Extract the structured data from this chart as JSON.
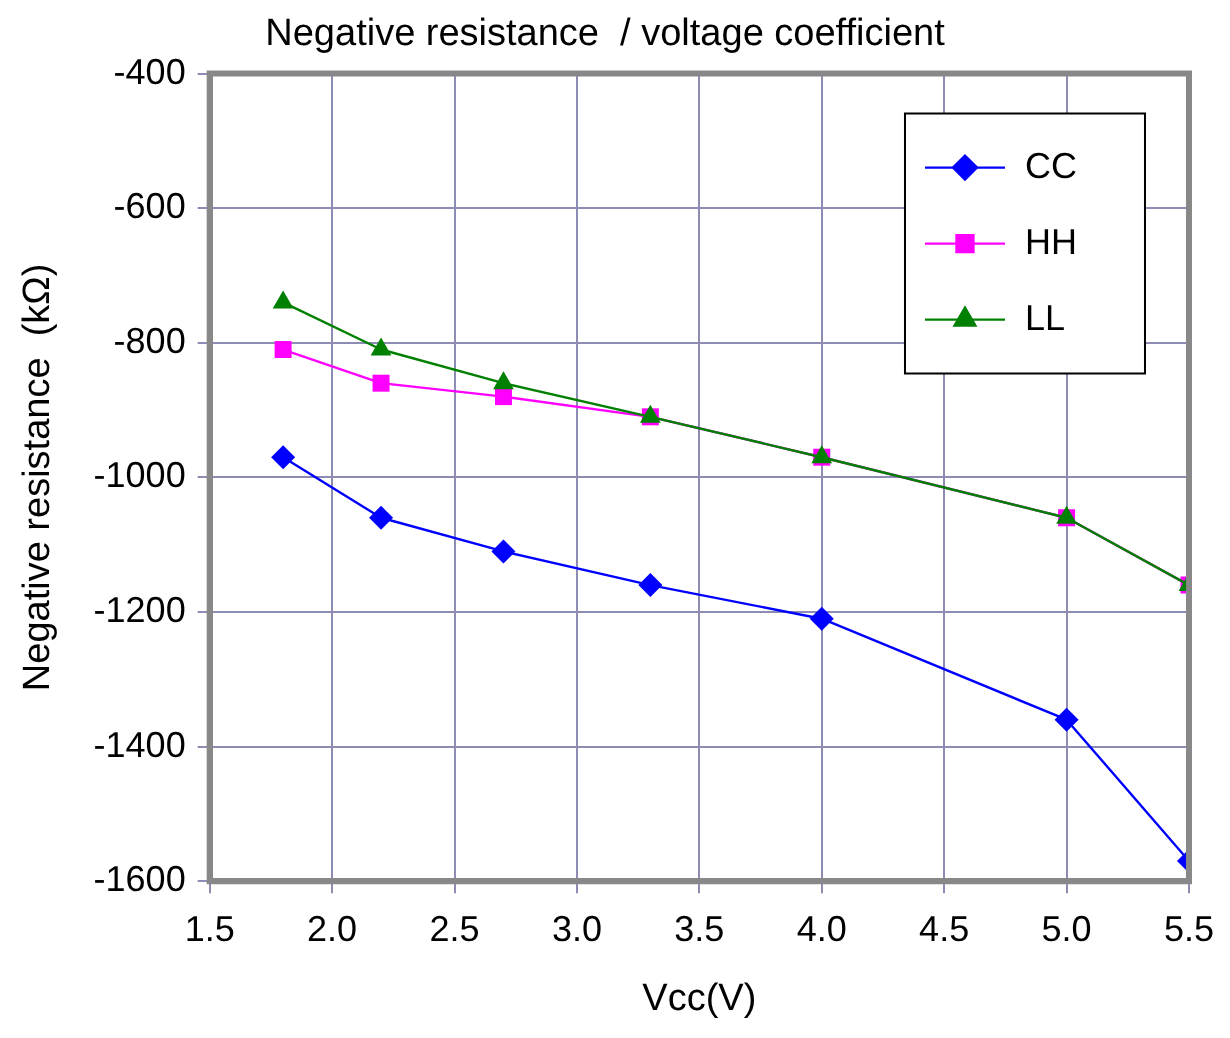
{
  "chart_data": {
    "type": "line",
    "title": "Negative resistance  / voltage coefficient",
    "xlabel": "Vcc(V)",
    "ylabel": "Negative resistance  (kΩ)",
    "x": [
      1.8,
      2.2,
      2.7,
      3.3,
      4.0,
      5.0,
      5.5
    ],
    "series": [
      {
        "name": "CC",
        "color": "#0000ff",
        "marker": "diamond",
        "values": [
          -970,
          -1060,
          -1110,
          -1160,
          -1210,
          -1360,
          -1570
        ]
      },
      {
        "name": "HH",
        "color": "#ff00ff",
        "marker": "square",
        "values": [
          -810,
          -860,
          -880,
          -910,
          -970,
          -1060,
          -1160
        ]
      },
      {
        "name": "LL",
        "color": "#008000",
        "marker": "triangle",
        "values": [
          -740,
          -810,
          -860,
          -910,
          -970,
          -1060,
          -1160
        ]
      }
    ],
    "xlim": [
      1.5,
      5.5
    ],
    "xticks": [
      1.5,
      {
        "value": 2,
        "label": "2.0"
      },
      2.5,
      {
        "value": 3,
        "label": "3.0"
      },
      3.5,
      {
        "value": 4,
        "label": "4.0"
      },
      4.5,
      {
        "value": 5,
        "label": "5.0"
      },
      5.5
    ],
    "ylim": [
      -1600,
      -400
    ],
    "yticks": [
      -1600,
      -1400,
      -1200,
      -1000,
      -800,
      -600,
      -400
    ],
    "grid": true,
    "legend": "top right",
    "line_style": "solid"
  }
}
